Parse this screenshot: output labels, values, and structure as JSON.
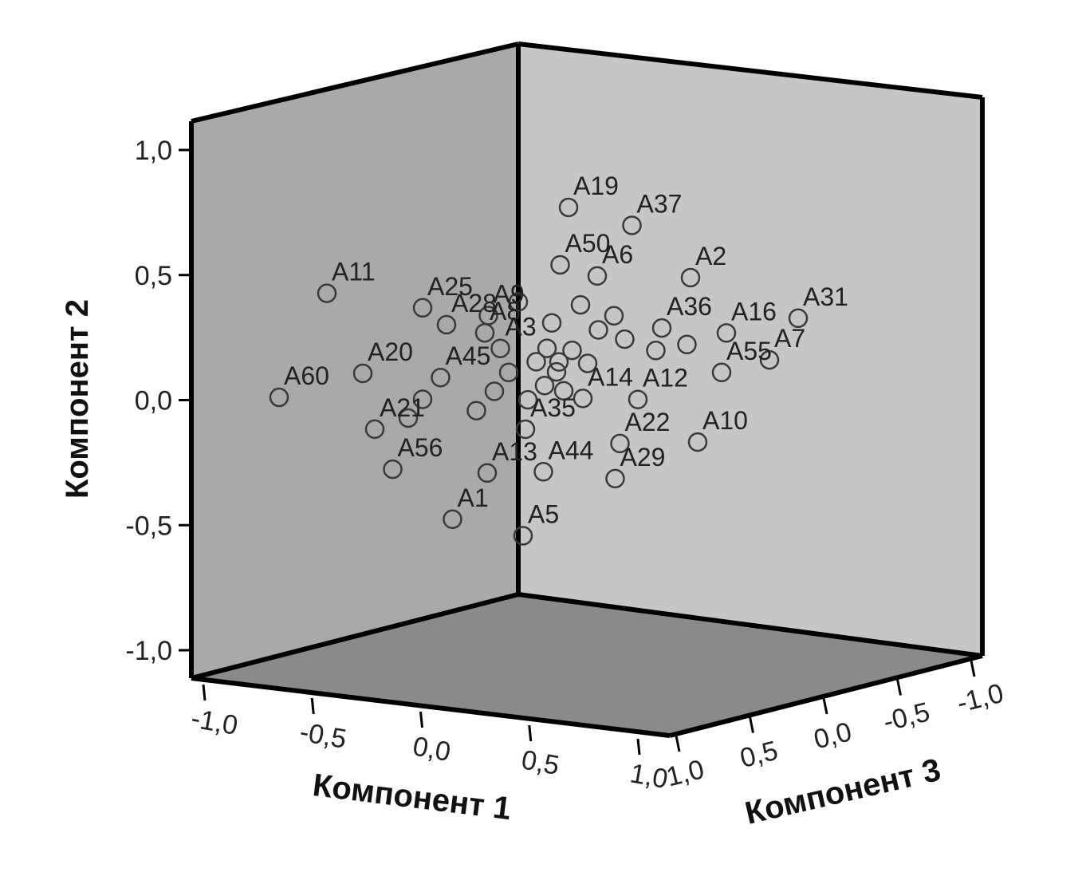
{
  "chart_data": {
    "type": "scatter",
    "subtype": "3d",
    "axes": {
      "x": {
        "label": "Компонент 1",
        "range": [
          -1.0,
          1.0
        ],
        "ticks": [
          "-1,0",
          "-0,5",
          "0,0",
          "0,5",
          "1,0"
        ]
      },
      "y": {
        "label": "Компонент 2",
        "range": [
          -1.0,
          1.0
        ],
        "ticks": [
          "-1,0",
          "-0,5",
          "0,0",
          "0,5",
          "1,0"
        ]
      },
      "z": {
        "label": "Компонент 3",
        "range": [
          -1.0,
          1.0
        ],
        "ticks": [
          "1,0",
          "0,5",
          "0,0",
          "-0,5",
          "-1,0"
        ]
      }
    },
    "grid": false,
    "colors": {
      "back_wall": "#c6c6c6",
      "left_wall": "#a9a9a9",
      "floor": "#8a8a8a",
      "frame": "#000000",
      "marker": "#3a3a3a"
    },
    "points": [
      {
        "label": "A19",
        "x": 0.3,
        "y": 0.76,
        "z": 0.18
      },
      {
        "label": "A37",
        "x": 0.5,
        "y": 0.66,
        "z": 0.05
      },
      {
        "label": "A50",
        "x": 0.25,
        "y": 0.53,
        "z": 0.15
      },
      {
        "label": "A25",
        "x": -0.1,
        "y": 0.42,
        "z": 0.6
      },
      {
        "label": "A9",
        "x": 0.1,
        "y": 0.36,
        "z": 0.45
      },
      {
        "label": "A6",
        "x": 0.38,
        "y": 0.47,
        "z": 0.1
      },
      {
        "label": "A2",
        "x": 0.62,
        "y": 0.42,
        "z": -0.2
      },
      {
        "label": "A31",
        "x": 0.96,
        "y": 0.21,
        "z": -0.42
      },
      {
        "label": "A11",
        "x": -0.4,
        "y": 0.52,
        "z": 0.8
      },
      {
        "label": "A28",
        "x": -0.05,
        "y": 0.34,
        "z": 0.5
      },
      {
        "label": "A8",
        "x": 0.06,
        "y": 0.29,
        "z": 0.4
      },
      {
        "label": "A36",
        "x": 0.55,
        "y": 0.23,
        "z": -0.1
      },
      {
        "label": "A16",
        "x": 0.72,
        "y": 0.18,
        "z": -0.3
      },
      {
        "label": "A60",
        "x": -0.55,
        "y": 0.12,
        "z": 0.9
      },
      {
        "label": "A20",
        "x": -0.3,
        "y": 0.18,
        "z": 0.7
      },
      {
        "label": "A3",
        "x": 0.1,
        "y": 0.22,
        "z": 0.35
      },
      {
        "label": "A45",
        "x": -0.05,
        "y": 0.13,
        "z": 0.55
      },
      {
        "label": "A7",
        "x": 0.8,
        "y": 0.05,
        "z": -0.5
      },
      {
        "label": "A55",
        "x": 0.65,
        "y": 0.02,
        "z": -0.4
      },
      {
        "label": "A14",
        "x": 0.32,
        "y": -0.02,
        "z": 0.1
      },
      {
        "label": "A12",
        "x": 0.45,
        "y": -0.05,
        "z": -0.1
      },
      {
        "label": "A21",
        "x": -0.25,
        "y": -0.05,
        "z": 0.7
      },
      {
        "label": "A35",
        "x": 0.13,
        "y": -0.12,
        "z": 0.2
      },
      {
        "label": "A22",
        "x": 0.4,
        "y": -0.22,
        "z": -0.05
      },
      {
        "label": "A10",
        "x": 0.6,
        "y": -0.25,
        "z": -0.3
      },
      {
        "label": "A56",
        "x": -0.2,
        "y": -0.22,
        "z": 0.65
      },
      {
        "label": "A13",
        "x": 0.02,
        "y": -0.28,
        "z": 0.3
      },
      {
        "label": "A44",
        "x": 0.18,
        "y": -0.3,
        "z": 0.15
      },
      {
        "label": "A29",
        "x": 0.38,
        "y": -0.36,
        "z": -0.05
      },
      {
        "label": "A1",
        "x": -0.05,
        "y": -0.45,
        "z": 0.45
      },
      {
        "label": "A5",
        "x": 0.12,
        "y": -0.55,
        "z": 0.2
      },
      {
        "label": "",
        "x": 0.2,
        "y": 0.15,
        "z": 0.25
      },
      {
        "label": "",
        "x": 0.26,
        "y": 0.1,
        "z": 0.2
      },
      {
        "label": "",
        "x": 0.3,
        "y": 0.18,
        "z": 0.15
      },
      {
        "label": "",
        "x": 0.34,
        "y": 0.12,
        "z": 0.1
      },
      {
        "label": "",
        "x": 0.22,
        "y": 0.05,
        "z": 0.22
      },
      {
        "label": "",
        "x": 0.18,
        "y": 0.0,
        "z": 0.28
      },
      {
        "label": "",
        "x": 0.28,
        "y": 0.02,
        "z": 0.18
      },
      {
        "label": "",
        "x": 0.36,
        "y": 0.25,
        "z": 0.05
      },
      {
        "label": "",
        "x": 0.4,
        "y": 0.3,
        "z": 0.0
      },
      {
        "label": "",
        "x": 0.42,
        "y": 0.2,
        "z": -0.05
      },
      {
        "label": "",
        "x": 0.1,
        "y": 0.05,
        "z": 0.4
      },
      {
        "label": "",
        "x": 0.05,
        "y": -0.02,
        "z": 0.45
      },
      {
        "label": "",
        "x": -0.1,
        "y": 0.05,
        "z": 0.6
      },
      {
        "label": "",
        "x": -0.15,
        "y": -0.02,
        "z": 0.62
      },
      {
        "label": "",
        "x": 0.15,
        "y": 0.4,
        "z": 0.3
      },
      {
        "label": "",
        "x": 0.24,
        "y": 0.3,
        "z": 0.2
      },
      {
        "label": "",
        "x": 0.32,
        "y": 0.36,
        "z": 0.12
      },
      {
        "label": "",
        "x": 0.5,
        "y": 0.14,
        "z": -0.15
      },
      {
        "label": "",
        "x": 0.58,
        "y": 0.15,
        "z": -0.25
      },
      {
        "label": "",
        "x": 0.14,
        "y": 0.12,
        "z": 0.36
      },
      {
        "label": "",
        "x": 0.24,
        "y": 0.2,
        "z": 0.24
      },
      {
        "label": "",
        "x": 0.28,
        "y": 0.14,
        "z": 0.22
      }
    ]
  }
}
